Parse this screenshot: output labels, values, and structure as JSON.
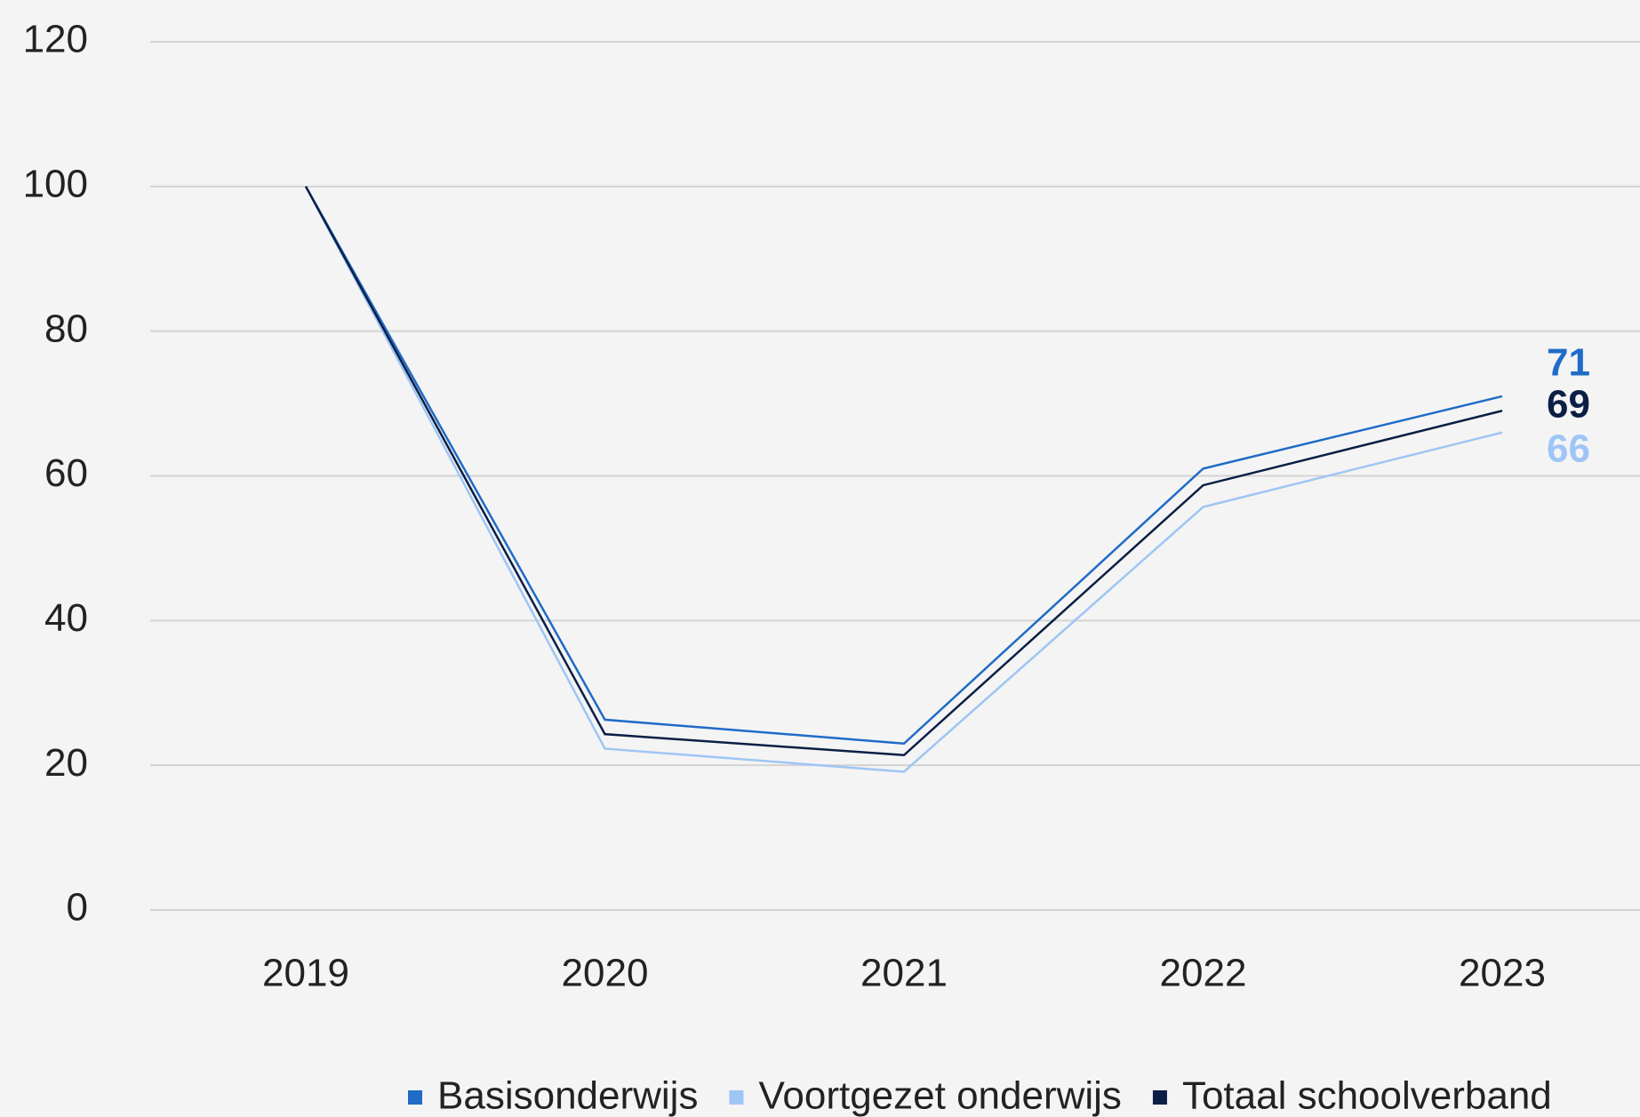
{
  "chart_data": {
    "type": "line",
    "categories": [
      "2019",
      "2020",
      "2021",
      "2022",
      "2023"
    ],
    "series": [
      {
        "name": "Basisonderwijs",
        "color": "#1f6bc7",
        "values": [
          100,
          26.3,
          23,
          61,
          71
        ]
      },
      {
        "name": "Voortgezet onderwijs",
        "color": "#9ec5f5",
        "values": [
          100,
          22.3,
          19.1,
          55.7,
          66
        ]
      },
      {
        "name": "Totaal schoolverband",
        "color": "#0b1f45",
        "values": [
          100,
          24.3,
          21.4,
          58.7,
          69
        ]
      }
    ],
    "ylim": [
      0,
      120
    ],
    "yticks": [
      0,
      20,
      40,
      60,
      80,
      100,
      120
    ],
    "grid": true,
    "legend": "bottom"
  }
}
